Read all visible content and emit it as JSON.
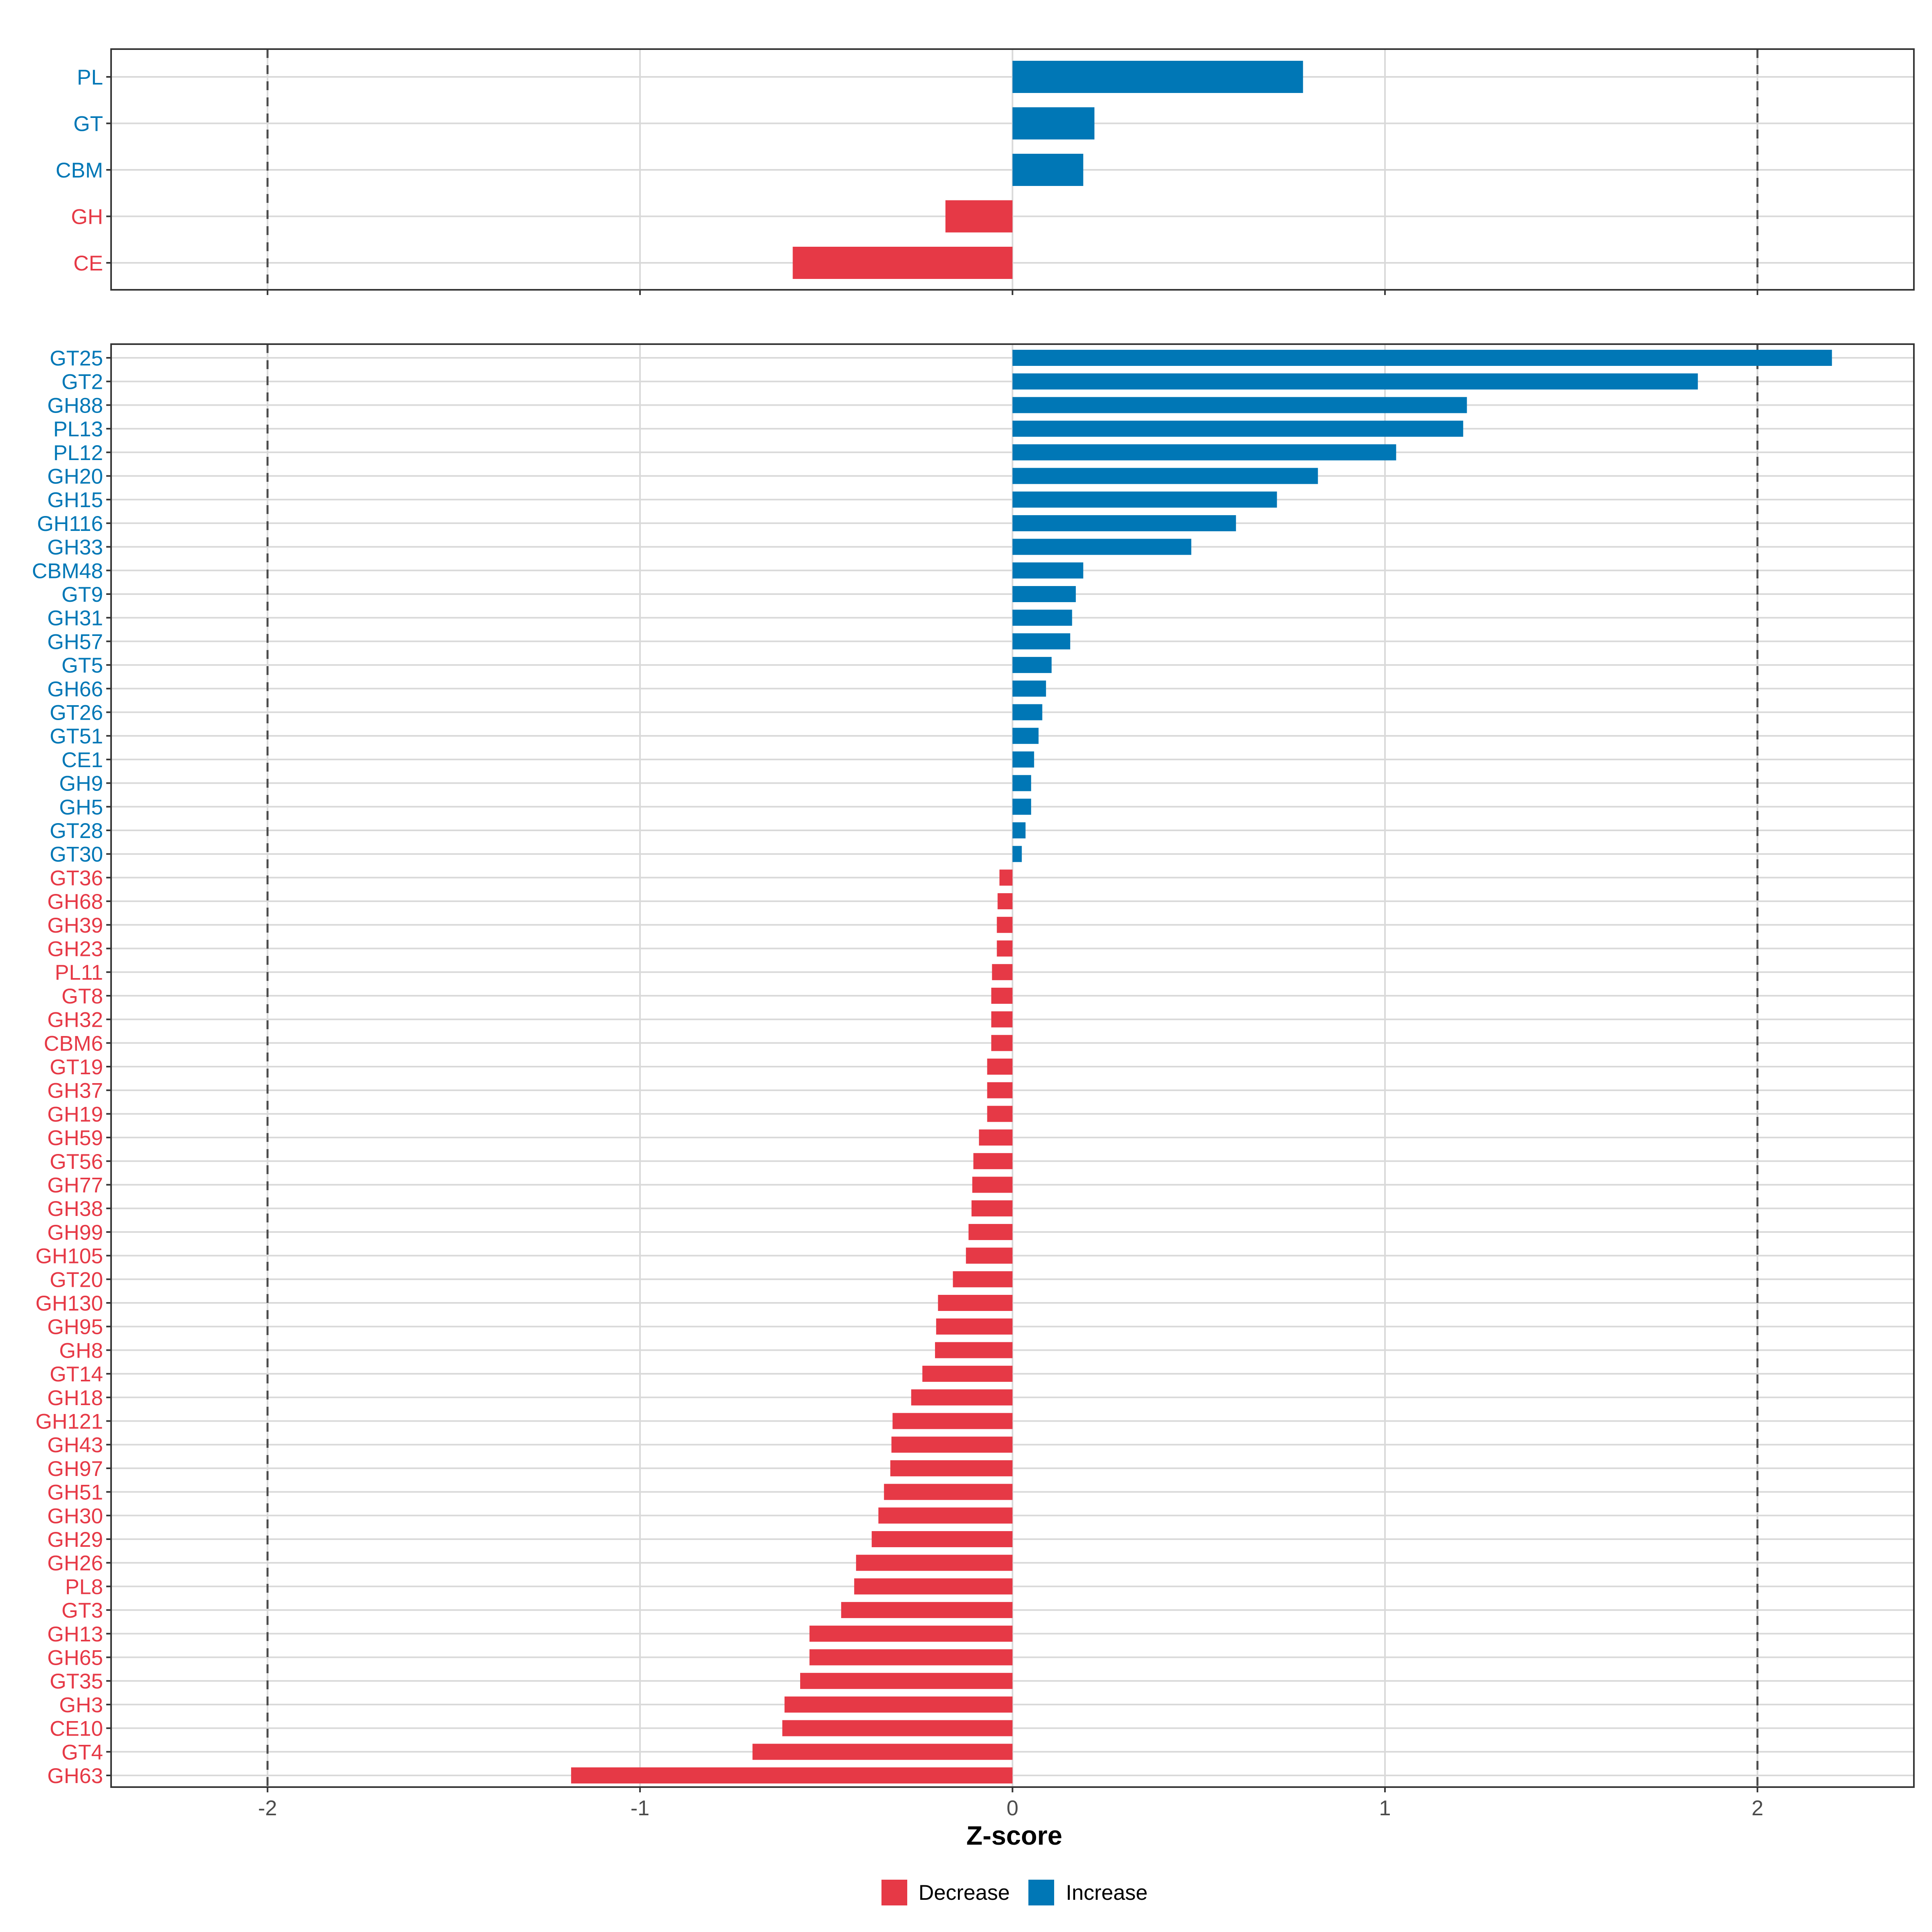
{
  "chart_data": [
    {
      "type": "bar",
      "orientation": "horizontal",
      "panel": "top",
      "categories": [
        "PL",
        "GT",
        "CBM",
        "GH",
        "CE"
      ],
      "values": [
        0.78,
        0.22,
        0.19,
        -0.18,
        -0.59
      ],
      "xlim": [
        -2.42,
        2.42
      ],
      "reference_lines": [
        -2,
        2
      ],
      "grid": true
    },
    {
      "type": "bar",
      "orientation": "horizontal",
      "panel": "bottom",
      "categories": [
        "GT25",
        "GT2",
        "GH88",
        "PL13",
        "PL12",
        "GH20",
        "GH15",
        "GH116",
        "GH33",
        "CBM48",
        "GT9",
        "GH31",
        "GH57",
        "GT5",
        "GH66",
        "GT26",
        "GT51",
        "CE1",
        "GH9",
        "GH5",
        "GT28",
        "GT30",
        "GT36",
        "GH68",
        "GH39",
        "GH23",
        "PL11",
        "GT8",
        "GH32",
        "CBM6",
        "GT19",
        "GH37",
        "GH19",
        "GH59",
        "GT56",
        "GH77",
        "GH38",
        "GH99",
        "GH105",
        "GT20",
        "GH130",
        "GH95",
        "GH8",
        "GT14",
        "GH18",
        "GH121",
        "GH43",
        "GH97",
        "GH51",
        "GH30",
        "GH29",
        "GH26",
        "PL8",
        "GT3",
        "GH13",
        "GH65",
        "GT35",
        "GH3",
        "CE10",
        "GT4",
        "GH63"
      ],
      "values": [
        2.2,
        1.84,
        1.22,
        1.21,
        1.03,
        0.82,
        0.71,
        0.6,
        0.48,
        0.19,
        0.17,
        0.16,
        0.155,
        0.105,
        0.09,
        0.08,
        0.07,
        0.058,
        0.05,
        0.05,
        0.035,
        0.025,
        -0.035,
        -0.04,
        -0.042,
        -0.042,
        -0.055,
        -0.057,
        -0.057,
        -0.057,
        -0.068,
        -0.068,
        -0.068,
        -0.09,
        -0.105,
        -0.108,
        -0.11,
        -0.118,
        -0.125,
        -0.16,
        -0.2,
        -0.205,
        -0.208,
        -0.242,
        -0.272,
        -0.322,
        -0.325,
        -0.328,
        -0.345,
        -0.36,
        -0.378,
        -0.42,
        -0.425,
        -0.46,
        -0.545,
        -0.545,
        -0.57,
        -0.612,
        -0.618,
        -0.698,
        -1.185
      ],
      "xlim": [
        -2.42,
        2.42
      ],
      "xticks": [
        -2,
        -1,
        0,
        1,
        2
      ],
      "xtick_labels": [
        "-2",
        "-1",
        "0",
        "1",
        "2"
      ],
      "reference_lines": [
        -2,
        2
      ],
      "grid": true
    }
  ],
  "axis": {
    "xlabel": "Z-score"
  },
  "legend": {
    "placement": "bottom",
    "items": [
      {
        "label": "Decrease",
        "color": "#E63946"
      },
      {
        "label": "Increase",
        "color": "#0077B6"
      }
    ]
  },
  "colors": {
    "increase": "#0077B6",
    "decrease": "#E63946",
    "grid": "#d9d9d9",
    "border": "#333333",
    "refline": "#4d4d4d"
  }
}
